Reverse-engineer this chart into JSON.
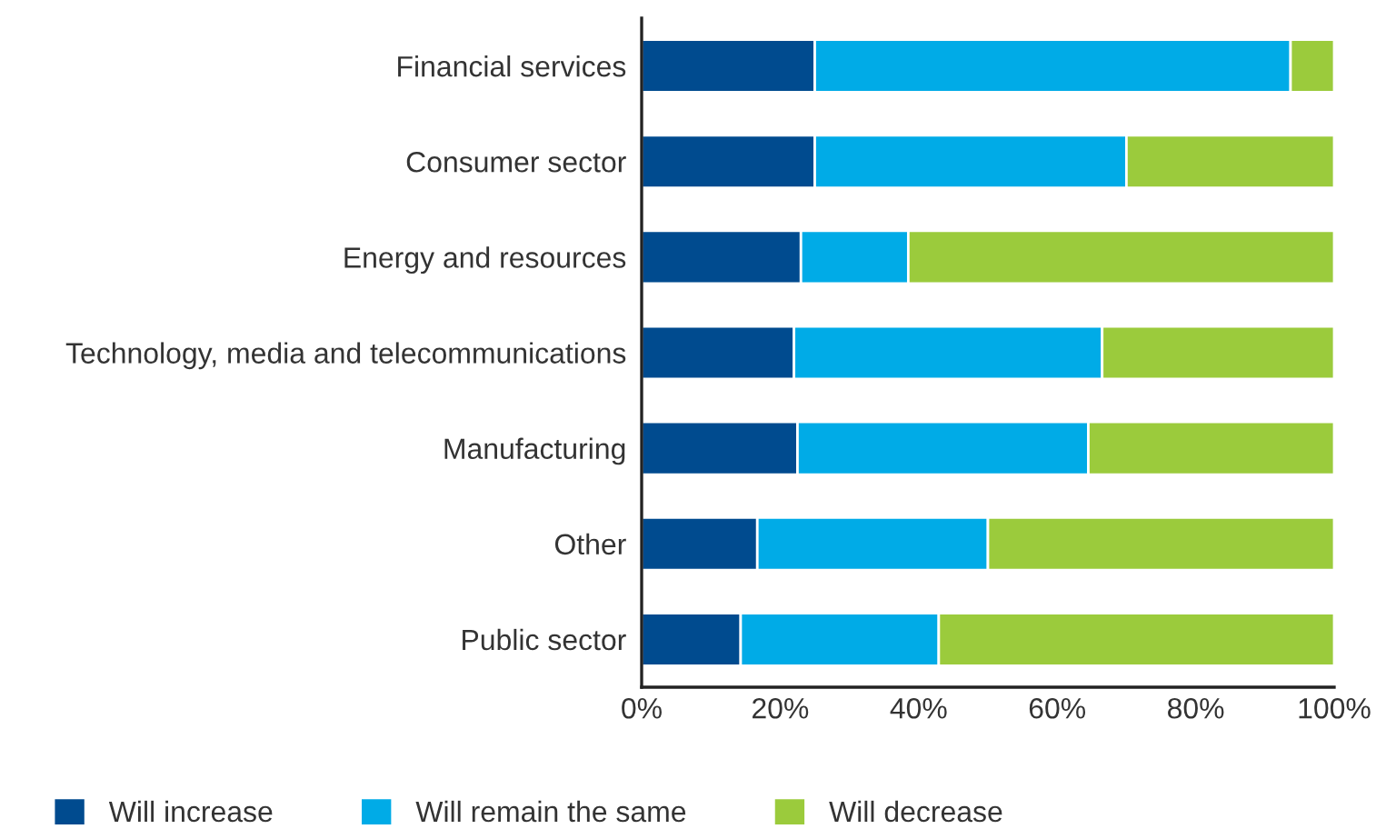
{
  "chart_data": {
    "type": "bar",
    "orientation": "horizontal",
    "stacked": true,
    "categories": [
      "Financial services",
      "Consumer sector",
      "Energy and resources",
      "Technology, media and telecommunications",
      "Manufacturing",
      "Other",
      "Public sector"
    ],
    "series": [
      {
        "name": "Will increase",
        "color": "#004b8f",
        "values": [
          25,
          25,
          23,
          22,
          22.5,
          16.7,
          14.3
        ]
      },
      {
        "name": "Will remain the same",
        "color": "#00abe7",
        "values": [
          68.7,
          45,
          15.5,
          44.5,
          42,
          33.3,
          28.6
        ]
      },
      {
        "name": "Will decrease",
        "color": "#9bcb3c",
        "values": [
          6.3,
          30,
          61.5,
          33.5,
          35.5,
          50,
          57.1
        ]
      }
    ],
    "xlim": [
      0,
      100
    ],
    "xticks": [
      {
        "value": 0,
        "label": "0%"
      },
      {
        "value": 20,
        "label": "20%"
      },
      {
        "value": 40,
        "label": "40%"
      },
      {
        "value": 60,
        "label": "60%"
      },
      {
        "value": 80,
        "label": "80%"
      },
      {
        "value": 100,
        "label": "100%"
      }
    ],
    "grid": false,
    "legend": "bottom"
  }
}
